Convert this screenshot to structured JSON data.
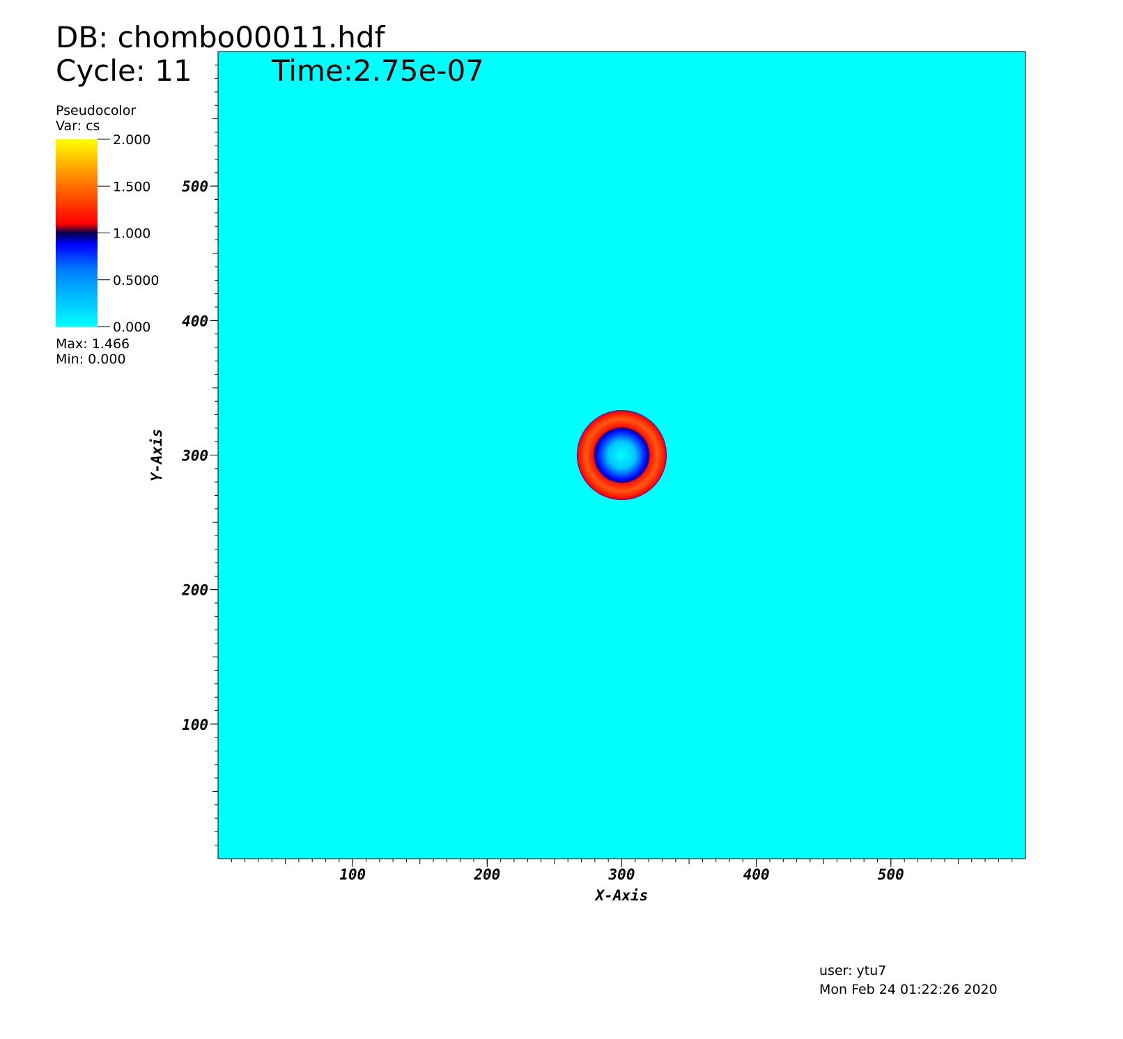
{
  "chart_data": {
    "type": "pseudocolor",
    "db": "DB: chombo00011.hdf",
    "cycle": "Cycle: 11",
    "time": "Time:2.75e-07",
    "legend_title": "Pseudocolor",
    "legend_var": "Var: cs",
    "legend_max": "Max:  1.466",
    "legend_min": "Min:  0.000",
    "colorbar_lim": [
      0,
      2
    ],
    "colorbar_ticks": [
      {
        "value": 2,
        "label": "2.000"
      },
      {
        "value": 1.5,
        "label": "1.500"
      },
      {
        "value": 1,
        "label": "1.000"
      },
      {
        "value": 0.5,
        "label": "0.5000"
      },
      {
        "value": 0,
        "label": "0.000"
      }
    ],
    "xlabel": "X-Axis",
    "ylabel": "Y-Axis",
    "xlim": [
      0,
      600
    ],
    "ylim": [
      0,
      600
    ],
    "xticks": [
      100,
      200,
      300,
      400,
      500
    ],
    "yticks": [
      100,
      200,
      300,
      400,
      500
    ],
    "background_color": "#00ffff",
    "user": "user: ytu7",
    "date": "Mon Feb 24 01:22:26 2020"
  }
}
